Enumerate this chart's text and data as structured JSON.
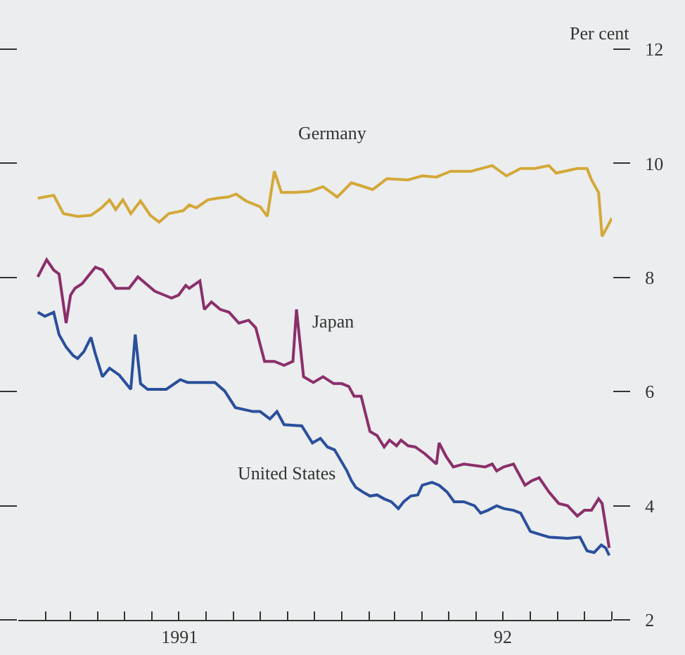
{
  "chart_data": {
    "type": "line",
    "ylabel": "Per cent",
    "legend": false,
    "xlim": [
      "1991-01-01",
      "1992-11-01"
    ],
    "ylim": [
      2,
      12
    ],
    "yticks": [
      2,
      4,
      6,
      8,
      10,
      12
    ],
    "xticks": [
      {
        "value": "1991-02-01",
        "label": null
      },
      {
        "value": "1991-03-01",
        "label": null
      },
      {
        "value": "1991-04-01",
        "label": null
      },
      {
        "value": "1991-05-01",
        "label": null
      },
      {
        "value": "1991-06-01",
        "label": null
      },
      {
        "value": "1991-07-01",
        "label": null
      },
      {
        "value": "1991-08-01",
        "label": null
      },
      {
        "value": "1991-09-01",
        "label": null
      },
      {
        "value": "1991-10-01",
        "label": null
      },
      {
        "value": "1991-11-01",
        "label": null
      },
      {
        "value": "1991-12-01",
        "label": null
      },
      {
        "value": "1992-01-01",
        "label": null
      },
      {
        "value": "1992-02-01",
        "label": null
      },
      {
        "value": "1992-03-01",
        "label": null
      },
      {
        "value": "1992-04-01",
        "label": null
      },
      {
        "value": "1992-05-01",
        "label": null
      },
      {
        "value": "1992-06-01",
        "label": null
      },
      {
        "value": "1992-07-01",
        "label": null
      },
      {
        "value": "1992-08-01",
        "label": null
      },
      {
        "value": "1992-09-01",
        "label": null
      },
      {
        "value": "1992-10-01",
        "label": null
      },
      {
        "value": "1992-11-01",
        "label": null
      },
      {
        "value": "1991-07-02",
        "label": "1991"
      },
      {
        "value": "1992-07-01",
        "label": "92"
      }
    ],
    "series": [
      {
        "name": "Germany",
        "color": "#d4a838",
        "x": [
          "1991-01-23",
          "1991-02-10",
          "1991-02-21",
          "1991-03-09",
          "1991-03-24",
          "1991-04-05",
          "1991-04-14",
          "1991-04-21",
          "1991-04-29",
          "1991-05-08",
          "1991-05-19",
          "1991-05-30",
          "1991-06-09",
          "1991-06-20",
          "1991-07-06",
          "1991-07-13",
          "1991-07-21",
          "1991-08-03",
          "1991-08-14",
          "1991-08-26",
          "1991-09-04",
          "1991-09-15",
          "1991-09-23",
          "1991-10-01",
          "1991-10-09",
          "1991-10-12",
          "1991-10-17",
          "1991-10-25",
          "1991-11-10",
          "1991-11-26",
          "1991-12-11",
          "1991-12-27",
          "1992-01-12",
          "1992-02-05",
          "1992-02-21",
          "1992-03-16",
          "1992-04-01",
          "1992-04-17",
          "1992-05-03",
          "1992-05-26",
          "1992-06-19",
          "1992-07-05",
          "1992-07-21",
          "1992-08-06",
          "1992-08-22",
          "1992-08-30",
          "1992-09-23",
          "1992-10-04",
          "1992-10-09",
          "1992-10-17",
          "1992-10-21",
          "1992-10-28",
          "1992-11-01"
        ],
        "values": [
          9.39,
          9.44,
          9.12,
          9.07,
          9.09,
          9.22,
          9.36,
          9.19,
          9.36,
          9.12,
          9.34,
          9.09,
          8.97,
          9.12,
          9.17,
          9.27,
          9.22,
          9.36,
          9.39,
          9.41,
          9.46,
          9.34,
          9.29,
          9.24,
          9.07,
          9.36,
          9.86,
          9.49,
          9.49,
          9.51,
          9.59,
          9.41,
          9.66,
          9.54,
          9.73,
          9.71,
          9.78,
          9.76,
          9.86,
          9.86,
          9.96,
          9.78,
          9.91,
          9.91,
          9.96,
          9.83,
          9.91,
          9.91,
          9.71,
          9.49,
          8.72,
          8.92,
          9.04
        ]
      },
      {
        "name": "Japan",
        "color": "#8b2f6b",
        "x": [
          "1991-01-23",
          "1991-02-02",
          "1991-02-10",
          "1991-02-16",
          "1991-02-24",
          "1991-03-01",
          "1991-03-06",
          "1991-03-14",
          "1991-03-29",
          "1991-04-06",
          "1991-04-21",
          "1991-05-06",
          "1991-05-16",
          "1991-06-04",
          "1991-06-15",
          "1991-06-23",
          "1991-07-01",
          "1991-07-09",
          "1991-07-13",
          "1991-07-25",
          "1991-07-30",
          "1991-08-07",
          "1991-08-17",
          "1991-08-27",
          "1991-09-07",
          "1991-09-18",
          "1991-09-26",
          "1991-10-06",
          "1991-10-17",
          "1991-10-28",
          "1991-11-07",
          "1991-11-11",
          "1991-11-19",
          "1991-11-30",
          "1991-12-11",
          "1991-12-23",
          "1992-01-01",
          "1992-01-09",
          "1992-01-15",
          "1992-01-23",
          "1992-02-02",
          "1992-02-10",
          "1992-02-18",
          "1992-02-24",
          "1992-03-03",
          "1992-03-08",
          "1992-03-16",
          "1992-03-24",
          "1992-04-04",
          "1992-04-17",
          "1992-04-20",
          "1992-04-28",
          "1992-05-06",
          "1992-05-18",
          "1992-06-11",
          "1992-06-19",
          "1992-06-24",
          "1992-07-02",
          "1992-07-13",
          "1992-07-26",
          "1992-08-03",
          "1992-08-11",
          "1992-08-22",
          "1992-09-02",
          "1992-09-12",
          "1992-09-23",
          "1992-10-01",
          "1992-10-09",
          "1992-10-17",
          "1992-10-21",
          "1992-10-29"
        ],
        "values": [
          8.01,
          8.31,
          8.13,
          8.06,
          7.2,
          7.69,
          7.81,
          7.89,
          8.18,
          8.13,
          7.81,
          7.81,
          8.01,
          7.76,
          7.69,
          7.64,
          7.69,
          7.86,
          7.81,
          7.94,
          7.44,
          7.57,
          7.44,
          7.39,
          7.2,
          7.25,
          7.12,
          6.53,
          6.53,
          6.46,
          6.53,
          7.44,
          6.26,
          6.16,
          6.26,
          6.14,
          6.14,
          6.09,
          5.92,
          5.92,
          5.3,
          5.23,
          5.03,
          5.15,
          5.05,
          5.15,
          5.05,
          5.03,
          4.91,
          4.73,
          5.1,
          4.86,
          4.68,
          4.73,
          4.68,
          4.73,
          4.61,
          4.68,
          4.73,
          4.36,
          4.44,
          4.49,
          4.24,
          4.04,
          4,
          3.82,
          3.92,
          3.92,
          4.12,
          4.04,
          3.26
        ]
      },
      {
        "name": "United States",
        "color": "#2a4f9c",
        "x": [
          "1991-01-23",
          "1991-01-31",
          "1991-02-10",
          "1991-02-16",
          "1991-02-24",
          "1991-03-04",
          "1991-03-09",
          "1991-03-16",
          "1991-03-24",
          "1991-03-29",
          "1991-04-06",
          "1991-04-14",
          "1991-04-25",
          "1991-05-08",
          "1991-05-13",
          "1991-05-19",
          "1991-05-27",
          "1991-06-17",
          "1991-07-03",
          "1991-07-11",
          "1991-08-11",
          "1991-08-22",
          "1991-09-03",
          "1991-09-23",
          "1991-10-01",
          "1991-10-12",
          "1991-10-20",
          "1991-10-28",
          "1991-11-17",
          "1991-11-29",
          "1991-12-08",
          "1991-12-16",
          "1991-12-24",
          "1992-01-07",
          "1992-01-12",
          "1992-01-17",
          "1992-01-25",
          "1992-02-02",
          "1992-02-10",
          "1992-02-18",
          "1992-02-26",
          "1992-03-05",
          "1992-03-11",
          "1992-03-19",
          "1992-03-27",
          "1992-04-01",
          "1992-04-12",
          "1992-04-20",
          "1992-04-29",
          "1992-05-07",
          "1992-05-18",
          "1992-05-30",
          "1992-06-06",
          "1992-06-14",
          "1992-06-24",
          "1992-07-02",
          "1992-07-13",
          "1992-07-21",
          "1992-08-01",
          "1992-08-11",
          "1992-08-22",
          "1992-09-12",
          "1992-09-26",
          "1992-10-04",
          "1992-10-12",
          "1992-10-20",
          "1992-10-25",
          "1992-10-29"
        ],
        "values": [
          7.39,
          7.32,
          7.39,
          7,
          6.78,
          6.63,
          6.58,
          6.7,
          6.95,
          6.66,
          6.26,
          6.41,
          6.29,
          6.04,
          7,
          6.14,
          6.04,
          6.04,
          6.21,
          6.16,
          6.16,
          6.01,
          5.72,
          5.65,
          5.65,
          5.52,
          5.65,
          5.42,
          5.4,
          5.1,
          5.18,
          5.03,
          4.98,
          4.61,
          4.44,
          4.32,
          4.24,
          4.17,
          4.19,
          4.12,
          4.07,
          3.95,
          4.07,
          4.17,
          4.19,
          4.36,
          4.41,
          4.36,
          4.24,
          4.07,
          4.07,
          4,
          3.87,
          3.92,
          4,
          3.95,
          3.92,
          3.87,
          3.55,
          3.5,
          3.45,
          3.43,
          3.45,
          3.21,
          3.18,
          3.31,
          3.26,
          3.13
        ]
      }
    ]
  }
}
